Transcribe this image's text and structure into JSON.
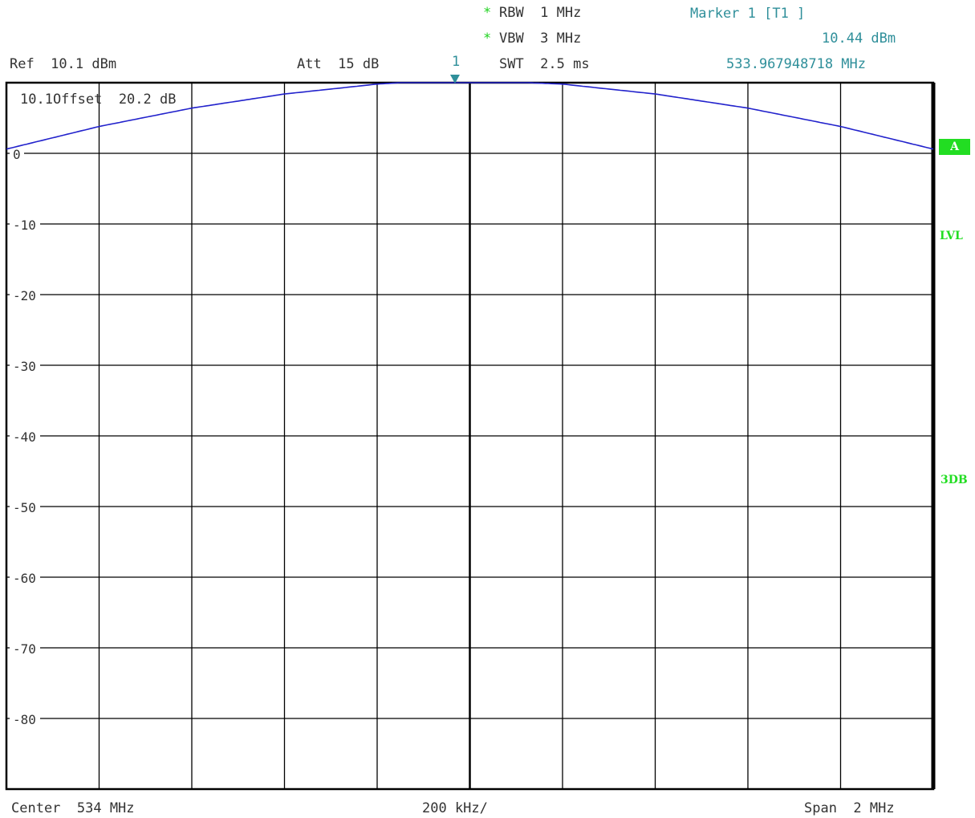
{
  "header": {
    "rbw_star": "*",
    "rbw": "RBW  1 MHz",
    "vbw_star": "*",
    "vbw": "VBW  3 MHz",
    "swt": "SWT  2.5 ms",
    "ref": "Ref  10.1 dBm",
    "att": "Att  15 dB",
    "marker_number": "1",
    "marker_title": "Marker 1 [T1 ]",
    "marker_level": "10.44 dBm",
    "marker_freq": "533.967948718 MHz"
  },
  "plot": {
    "offset_text": "10.1Offset  20.2 dB",
    "center": "Center  534 MHz",
    "per_div": "200 kHz/",
    "span": "Span  2 MHz"
  },
  "side": {
    "trace_badge": "A",
    "lvl": "LVL",
    "threedb": "3DB"
  },
  "colors": {
    "trace": "#2222cc",
    "grid": "#000000",
    "marker": "#2f8f9a",
    "indicator": "#22dd22"
  },
  "chart_data": {
    "type": "line",
    "xlabel": "",
    "ylabel": "",
    "x_range_mhz": [
      533,
      535
    ],
    "y_range_dbm": [
      -89.9,
      10.1
    ],
    "ref_level_dbm": 10.1,
    "y_ticks": [
      0,
      -10,
      -20,
      -30,
      -40,
      -50,
      -60,
      -70,
      -80
    ],
    "y_tick_labels": [
      "0",
      "-10",
      "-20",
      "-30",
      "-40",
      "-50",
      "-60",
      "-70",
      "-80"
    ],
    "grid": true,
    "series": [
      {
        "x": [
          533.0,
          533.2,
          533.4,
          533.6,
          533.8,
          533.9,
          534.0,
          534.2,
          534.4,
          534.6,
          534.8,
          535.0
        ],
        "y": [
          0.7,
          3.9,
          6.5,
          8.5,
          9.9,
          10.3,
          10.44,
          9.9,
          8.5,
          6.5,
          3.9,
          0.7
        ]
      }
    ],
    "marker": {
      "x": 533.967948718,
      "y": 10.44,
      "label": "1"
    }
  }
}
